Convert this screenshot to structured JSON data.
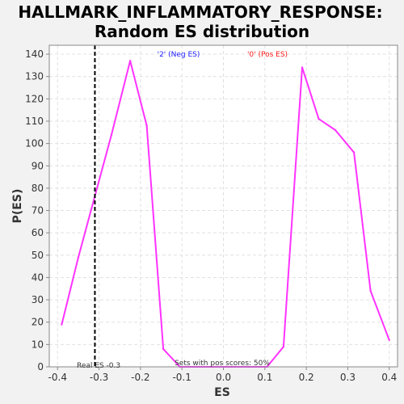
{
  "chart_data": {
    "type": "line",
    "title_line1": "HALLMARK_INFLAMMATORY_RESPONSE:",
    "title_line2": "Random ES distribution",
    "xlabel": "ES",
    "ylabel": "P(ES)",
    "xlim": [
      -0.42,
      0.42
    ],
    "ylim": [
      0,
      144
    ],
    "xticks": [
      -0.4,
      -0.3,
      -0.2,
      -0.1,
      0.0,
      0.1,
      0.2,
      0.3,
      0.4
    ],
    "xtick_labels": [
      "-0.4",
      "-0.3",
      "-0.2",
      "-0.1",
      "0.0",
      "0.1",
      "0.2",
      "0.3",
      "0.4"
    ],
    "yticks": [
      0,
      10,
      20,
      30,
      40,
      50,
      60,
      70,
      80,
      90,
      100,
      110,
      120,
      130,
      140
    ],
    "ytick_labels": [
      "0",
      "10",
      "20",
      "30",
      "40",
      "50",
      "60",
      "70",
      "80",
      "90",
      "100",
      "110",
      "120",
      "130",
      "140"
    ],
    "grid": true,
    "series": [
      {
        "color": "#ff33ff",
        "x": [
          -0.39,
          -0.35,
          -0.27,
          -0.225,
          -0.185,
          -0.145,
          -0.105,
          -0.065,
          -0.025,
          0.02,
          0.06,
          0.105,
          0.145,
          0.19,
          0.23,
          0.27,
          0.315,
          0.355,
          0.4
        ],
        "y": [
          19,
          49,
          104,
          137,
          108,
          8,
          0,
          0,
          0,
          0,
          0,
          0,
          9,
          134,
          111,
          106,
          96,
          34,
          12
        ]
      }
    ],
    "vline": {
      "x": -0.31,
      "label": "Real ES -0.3",
      "color": "#000000"
    },
    "annotations": {
      "neg_label": "'2' (Neg ES)",
      "neg_color": "#1a1aff",
      "pos_label": "'0' (Pos ES)",
      "pos_color": "#ff1a1a",
      "pos_scores_label": "Sets with pos scores: 50%"
    },
    "colors": {
      "background": "#f2f2f2",
      "plot_background": "#ffffff",
      "grid": "#e0e0e0"
    }
  }
}
